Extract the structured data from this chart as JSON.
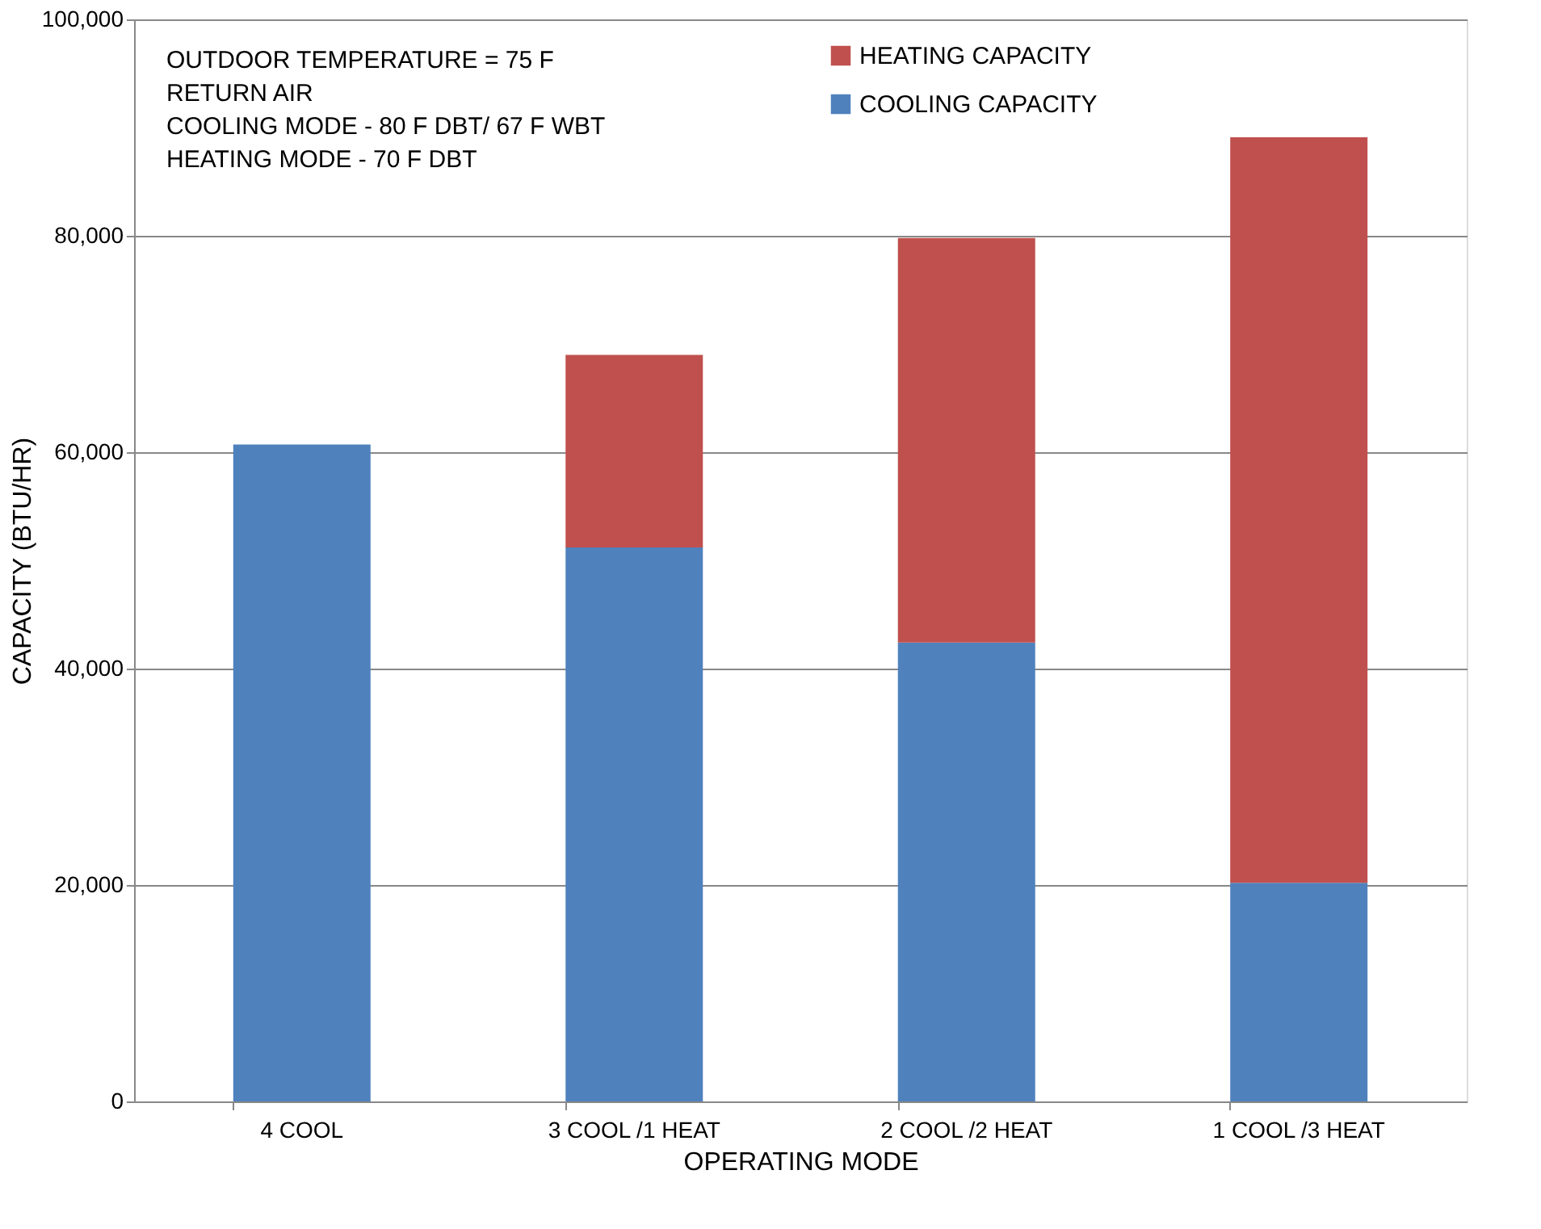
{
  "chart_data": {
    "type": "bar",
    "stacked": true,
    "xlabel": "OPERATING MODE",
    "ylabel": "CAPACITY (BTU/HR)",
    "categories": [
      "4 COOL",
      "3 COOL /1 HEAT",
      "2 COOL /2 HEAT",
      "1 COOL /3 HEAT"
    ],
    "series": [
      {
        "name": "COOLING CAPACITY",
        "color": "#4f81bd",
        "values": [
          60700,
          51200,
          42400,
          20200
        ]
      },
      {
        "name": "HEATING CAPACITY",
        "color": "#c0504d",
        "values": [
          null,
          17800,
          37400,
          68900
        ]
      }
    ],
    "ylim": [
      0,
      100000
    ],
    "yticks": [
      0,
      {
        "value": 20000,
        "label": "20,000"
      },
      {
        "value": 40000,
        "label": "40,000"
      },
      {
        "value": 60000,
        "label": "60,000"
      },
      {
        "value": 80000,
        "label": "80,000"
      },
      {
        "value": 100000,
        "label": "100,000"
      }
    ],
    "grid": "y",
    "legend": "top",
    "annotations": [
      "OUTDOOR TEMPERATURE = 75 F",
      "RETURN AIR",
      "COOLING MODE - 80 F DBT/ 67 F WBT",
      "HEATING MODE -  70 F DBT"
    ]
  }
}
